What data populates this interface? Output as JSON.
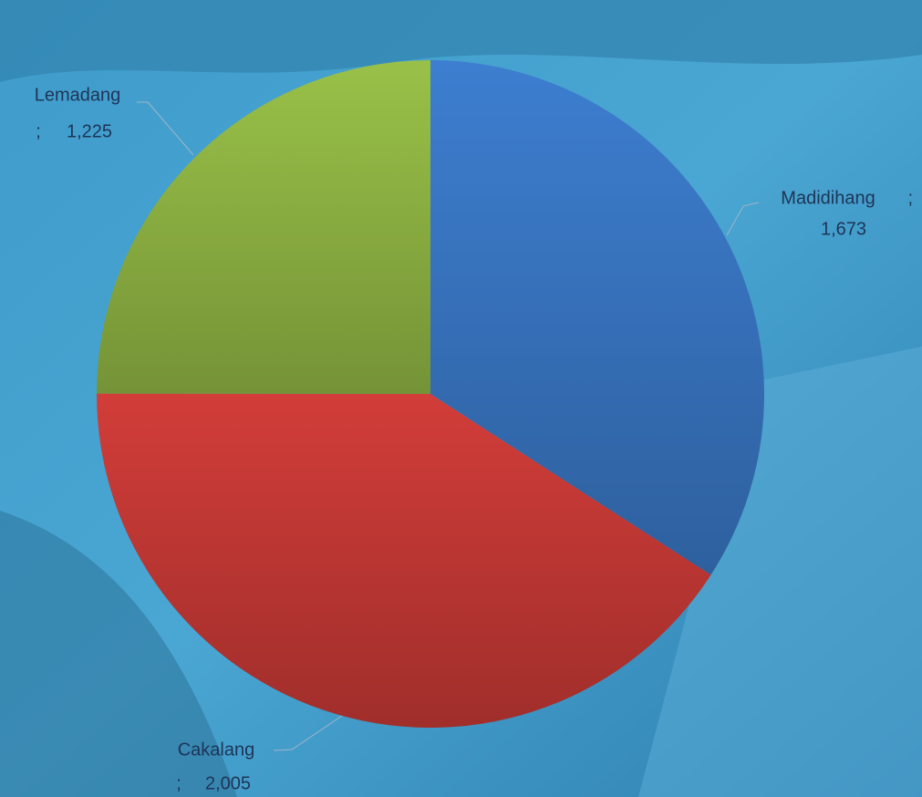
{
  "chart_data": {
    "type": "pie",
    "categories": [
      "Madidihang",
      "Cakalang",
      "Lemadang"
    ],
    "values": [
      1673,
      2005,
      1225
    ],
    "value_labels": [
      "1,673",
      "2,005",
      "1,225"
    ],
    "label_separator": ";",
    "colors": [
      "#3a78c6",
      "#c83a36",
      "#92b845"
    ]
  }
}
